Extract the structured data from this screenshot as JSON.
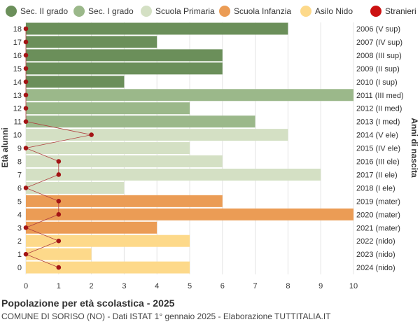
{
  "chart_data": {
    "type": "bar",
    "orientation": "horizontal",
    "title": "Popolazione per età scolastica - 2025",
    "subtitle": "COMUNE DI SORISO (NO) - Dati ISTAT 1° gennaio 2025 - Elaborazione TUTTITALIA.IT",
    "ylabel_left": "Età alunni",
    "ylabel_right": "Anni di nascita",
    "xlim": [
      0,
      10
    ],
    "x_ticks": [
      0,
      1,
      2,
      3,
      4,
      5,
      6,
      7,
      8,
      9,
      10
    ],
    "grid": true,
    "legend_position": "top",
    "legend": [
      {
        "name": "Sec. II grado",
        "color": "#6b8f5a"
      },
      {
        "name": "Sec. I grado",
        "color": "#9bb88a"
      },
      {
        "name": "Scuola Primaria",
        "color": "#d4e0c4"
      },
      {
        "name": "Scuola Infanzia",
        "color": "#eb9c55"
      },
      {
        "name": "Asilo Nido",
        "color": "#fdd98a"
      },
      {
        "name": "Stranieri",
        "color": "#cc1111"
      }
    ],
    "bars": [
      {
        "age": "18",
        "year": "2006 (V sup)",
        "value": 8,
        "group": 0,
        "stranieri": 0
      },
      {
        "age": "17",
        "year": "2007 (IV sup)",
        "value": 4,
        "group": 0,
        "stranieri": 0
      },
      {
        "age": "16",
        "year": "2008 (III sup)",
        "value": 6,
        "group": 0,
        "stranieri": 0
      },
      {
        "age": "15",
        "year": "2009 (II sup)",
        "value": 6,
        "group": 0,
        "stranieri": 0
      },
      {
        "age": "14",
        "year": "2010 (I sup)",
        "value": 3,
        "group": 0,
        "stranieri": 0
      },
      {
        "age": "13",
        "year": "2011 (III med)",
        "value": 10,
        "group": 1,
        "stranieri": 0
      },
      {
        "age": "12",
        "year": "2012 (II med)",
        "value": 5,
        "group": 1,
        "stranieri": 0
      },
      {
        "age": "11",
        "year": "2013 (I med)",
        "value": 7,
        "group": 1,
        "stranieri": 0
      },
      {
        "age": "10",
        "year": "2014 (V ele)",
        "value": 8,
        "group": 2,
        "stranieri": 2
      },
      {
        "age": "9",
        "year": "2015 (IV ele)",
        "value": 5,
        "group": 2,
        "stranieri": 0
      },
      {
        "age": "8",
        "year": "2016 (III ele)",
        "value": 6,
        "group": 2,
        "stranieri": 1
      },
      {
        "age": "7",
        "year": "2017 (II ele)",
        "value": 9,
        "group": 2,
        "stranieri": 1
      },
      {
        "age": "6",
        "year": "2018 (I ele)",
        "value": 3,
        "group": 2,
        "stranieri": 0
      },
      {
        "age": "5",
        "year": "2019 (mater)",
        "value": 6,
        "group": 3,
        "stranieri": 1
      },
      {
        "age": "4",
        "year": "2020 (mater)",
        "value": 10,
        "group": 3,
        "stranieri": 1
      },
      {
        "age": "3",
        "year": "2021 (mater)",
        "value": 4,
        "group": 3,
        "stranieri": 0
      },
      {
        "age": "2",
        "year": "2022 (nido)",
        "value": 5,
        "group": 4,
        "stranieri": 1
      },
      {
        "age": "1",
        "year": "2023 (nido)",
        "value": 2,
        "group": 4,
        "stranieri": 0
      },
      {
        "age": "0",
        "year": "2024 (nido)",
        "value": 5,
        "group": 4,
        "stranieri": 1
      }
    ]
  }
}
